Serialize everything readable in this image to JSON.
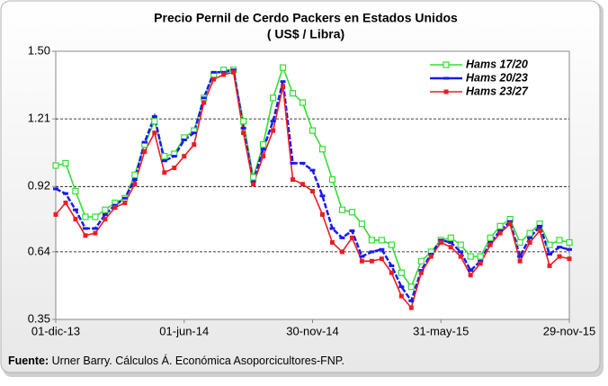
{
  "chart_data": {
    "type": "line",
    "title": "Precio Pernil de Cerdo Packers en Estados Unidos",
    "subtitle": "( US$ / Libra)",
    "source_label": "Fuente:",
    "source": "Urner Barry. Cálculos Á. Económica Asoporcicultores-FNP.",
    "categories": [
      "01-dic-13",
      null,
      null,
      null,
      null,
      null,
      null,
      null,
      null,
      null,
      null,
      null,
      null,
      "01-jun-14",
      null,
      null,
      null,
      null,
      null,
      null,
      null,
      null,
      null,
      null,
      null,
      null,
      "30-nov-14",
      null,
      null,
      null,
      null,
      null,
      null,
      null,
      null,
      null,
      null,
      null,
      null,
      "31-may-15",
      null,
      null,
      null,
      null,
      null,
      null,
      null,
      null,
      null,
      null,
      null,
      null,
      "29-nov-15"
    ],
    "ylim": [
      0.35,
      1.5
    ],
    "yticks": [
      0.35,
      0.64,
      0.92,
      1.21,
      {
        "value": 1.5,
        "label": "1.50"
      }
    ],
    "grid": true,
    "legend": "top-right",
    "series": [
      {
        "name": "Hams 17/20",
        "color": "#33dd33",
        "values": [
          1.01,
          1.02,
          0.9,
          0.79,
          0.79,
          0.82,
          0.85,
          0.87,
          0.97,
          1.1,
          1.2,
          1.05,
          1.06,
          1.13,
          1.16,
          1.3,
          1.4,
          1.42,
          1.42,
          1.2,
          0.96,
          1.1,
          1.3,
          1.43,
          1.32,
          1.28,
          1.16,
          1.08,
          0.95,
          0.82,
          0.81,
          0.76,
          0.69,
          0.69,
          0.67,
          0.55,
          0.49,
          0.6,
          0.64,
          0.69,
          0.7,
          0.67,
          0.62,
          0.62,
          0.7,
          0.75,
          0.78,
          0.68,
          0.72,
          0.76,
          0.67,
          0.69,
          0.68
        ]
      },
      {
        "name": "Hams 20/23",
        "color": "#1a1aee",
        "values": [
          0.91,
          0.89,
          0.82,
          0.74,
          0.74,
          0.8,
          0.84,
          0.87,
          0.95,
          1.11,
          1.22,
          1.03,
          1.05,
          1.12,
          1.15,
          1.3,
          1.41,
          1.41,
          1.42,
          1.17,
          0.94,
          1.08,
          1.2,
          1.37,
          1.02,
          1.02,
          0.99,
          0.88,
          0.74,
          0.7,
          0.73,
          0.62,
          0.64,
          0.65,
          0.58,
          0.49,
          0.43,
          0.56,
          0.63,
          0.69,
          0.68,
          0.64,
          0.56,
          0.6,
          0.68,
          0.73,
          0.77,
          0.62,
          0.7,
          0.75,
          0.63,
          0.66,
          0.65
        ]
      },
      {
        "name": "Hams 23/27",
        "color": "#ee1c24",
        "values": [
          0.8,
          0.85,
          0.78,
          0.71,
          0.72,
          0.78,
          0.83,
          0.85,
          0.93,
          1.07,
          1.15,
          0.98,
          1.0,
          1.05,
          1.1,
          1.28,
          1.38,
          1.4,
          1.41,
          1.15,
          0.93,
          1.05,
          1.16,
          1.35,
          0.95,
          0.93,
          0.9,
          0.8,
          0.68,
          0.64,
          0.7,
          0.6,
          0.6,
          0.61,
          0.55,
          0.45,
          0.4,
          0.55,
          0.62,
          0.68,
          0.66,
          0.62,
          0.54,
          0.59,
          0.67,
          0.72,
          0.76,
          0.6,
          0.68,
          0.73,
          0.58,
          0.62,
          0.61
        ]
      }
    ]
  }
}
